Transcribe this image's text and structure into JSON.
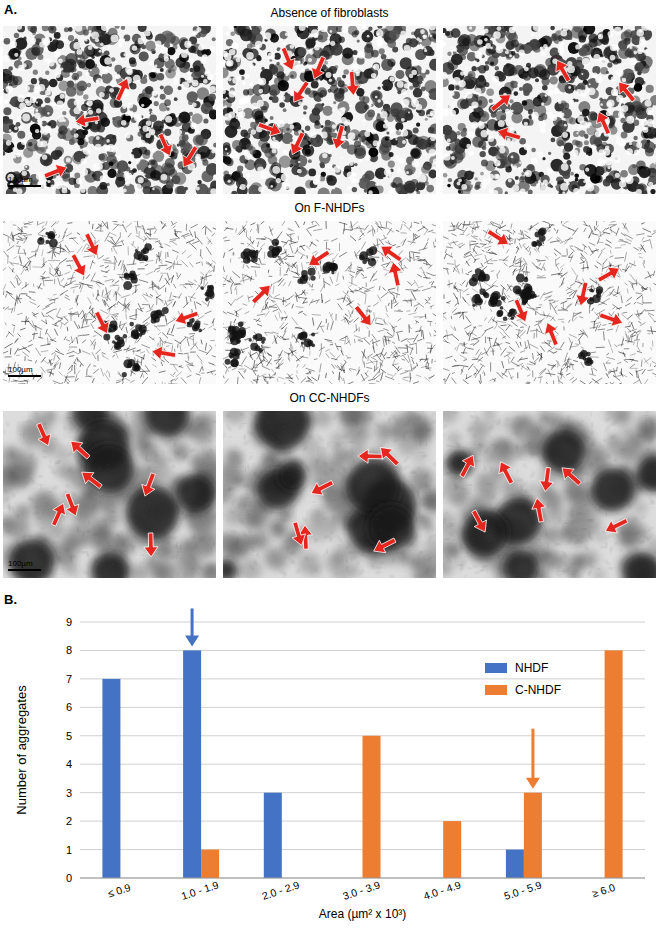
{
  "figure": {
    "panel_label": "A.",
    "rows": [
      {
        "title": "Absence of  fibroblasts",
        "scale_bar": "100µm"
      },
      {
        "title": "On F-NHDFs",
        "scale_bar": "100µm"
      },
      {
        "title": "On CC-NHDFs",
        "scale_bar": "100µm"
      }
    ]
  },
  "chart_data": {
    "type": "bar",
    "panel_label": "B.",
    "categories": [
      "≤ 0.9",
      "1.0 - 1.9",
      "2.0 - 2.9",
      "3.0 - 3.9",
      "4.0 - 4.9",
      "5.0 - 5.9",
      "≥ 6.0"
    ],
    "series": [
      {
        "name": "NHDF",
        "color": "#4472c4",
        "values": [
          7,
          8,
          3,
          0,
          0,
          1,
          0
        ]
      },
      {
        "name": "C-NHDF",
        "color": "#ed7d31",
        "values": [
          0,
          1,
          0,
          5,
          2,
          3,
          8
        ]
      }
    ],
    "x_label": "Area (µm² x 10³)",
    "y_label": "Number of aggregates",
    "ylim": [
      0,
      9
    ],
    "yticks": [
      0,
      1,
      2,
      3,
      4,
      5,
      6,
      7,
      8,
      9
    ],
    "grid": true,
    "legend": "upper right",
    "annotations": [
      {
        "series": "NHDF",
        "category": "1.0 - 1.9"
      },
      {
        "series": "C-NHDF",
        "category": "5.0 - 5.9"
      }
    ]
  }
}
